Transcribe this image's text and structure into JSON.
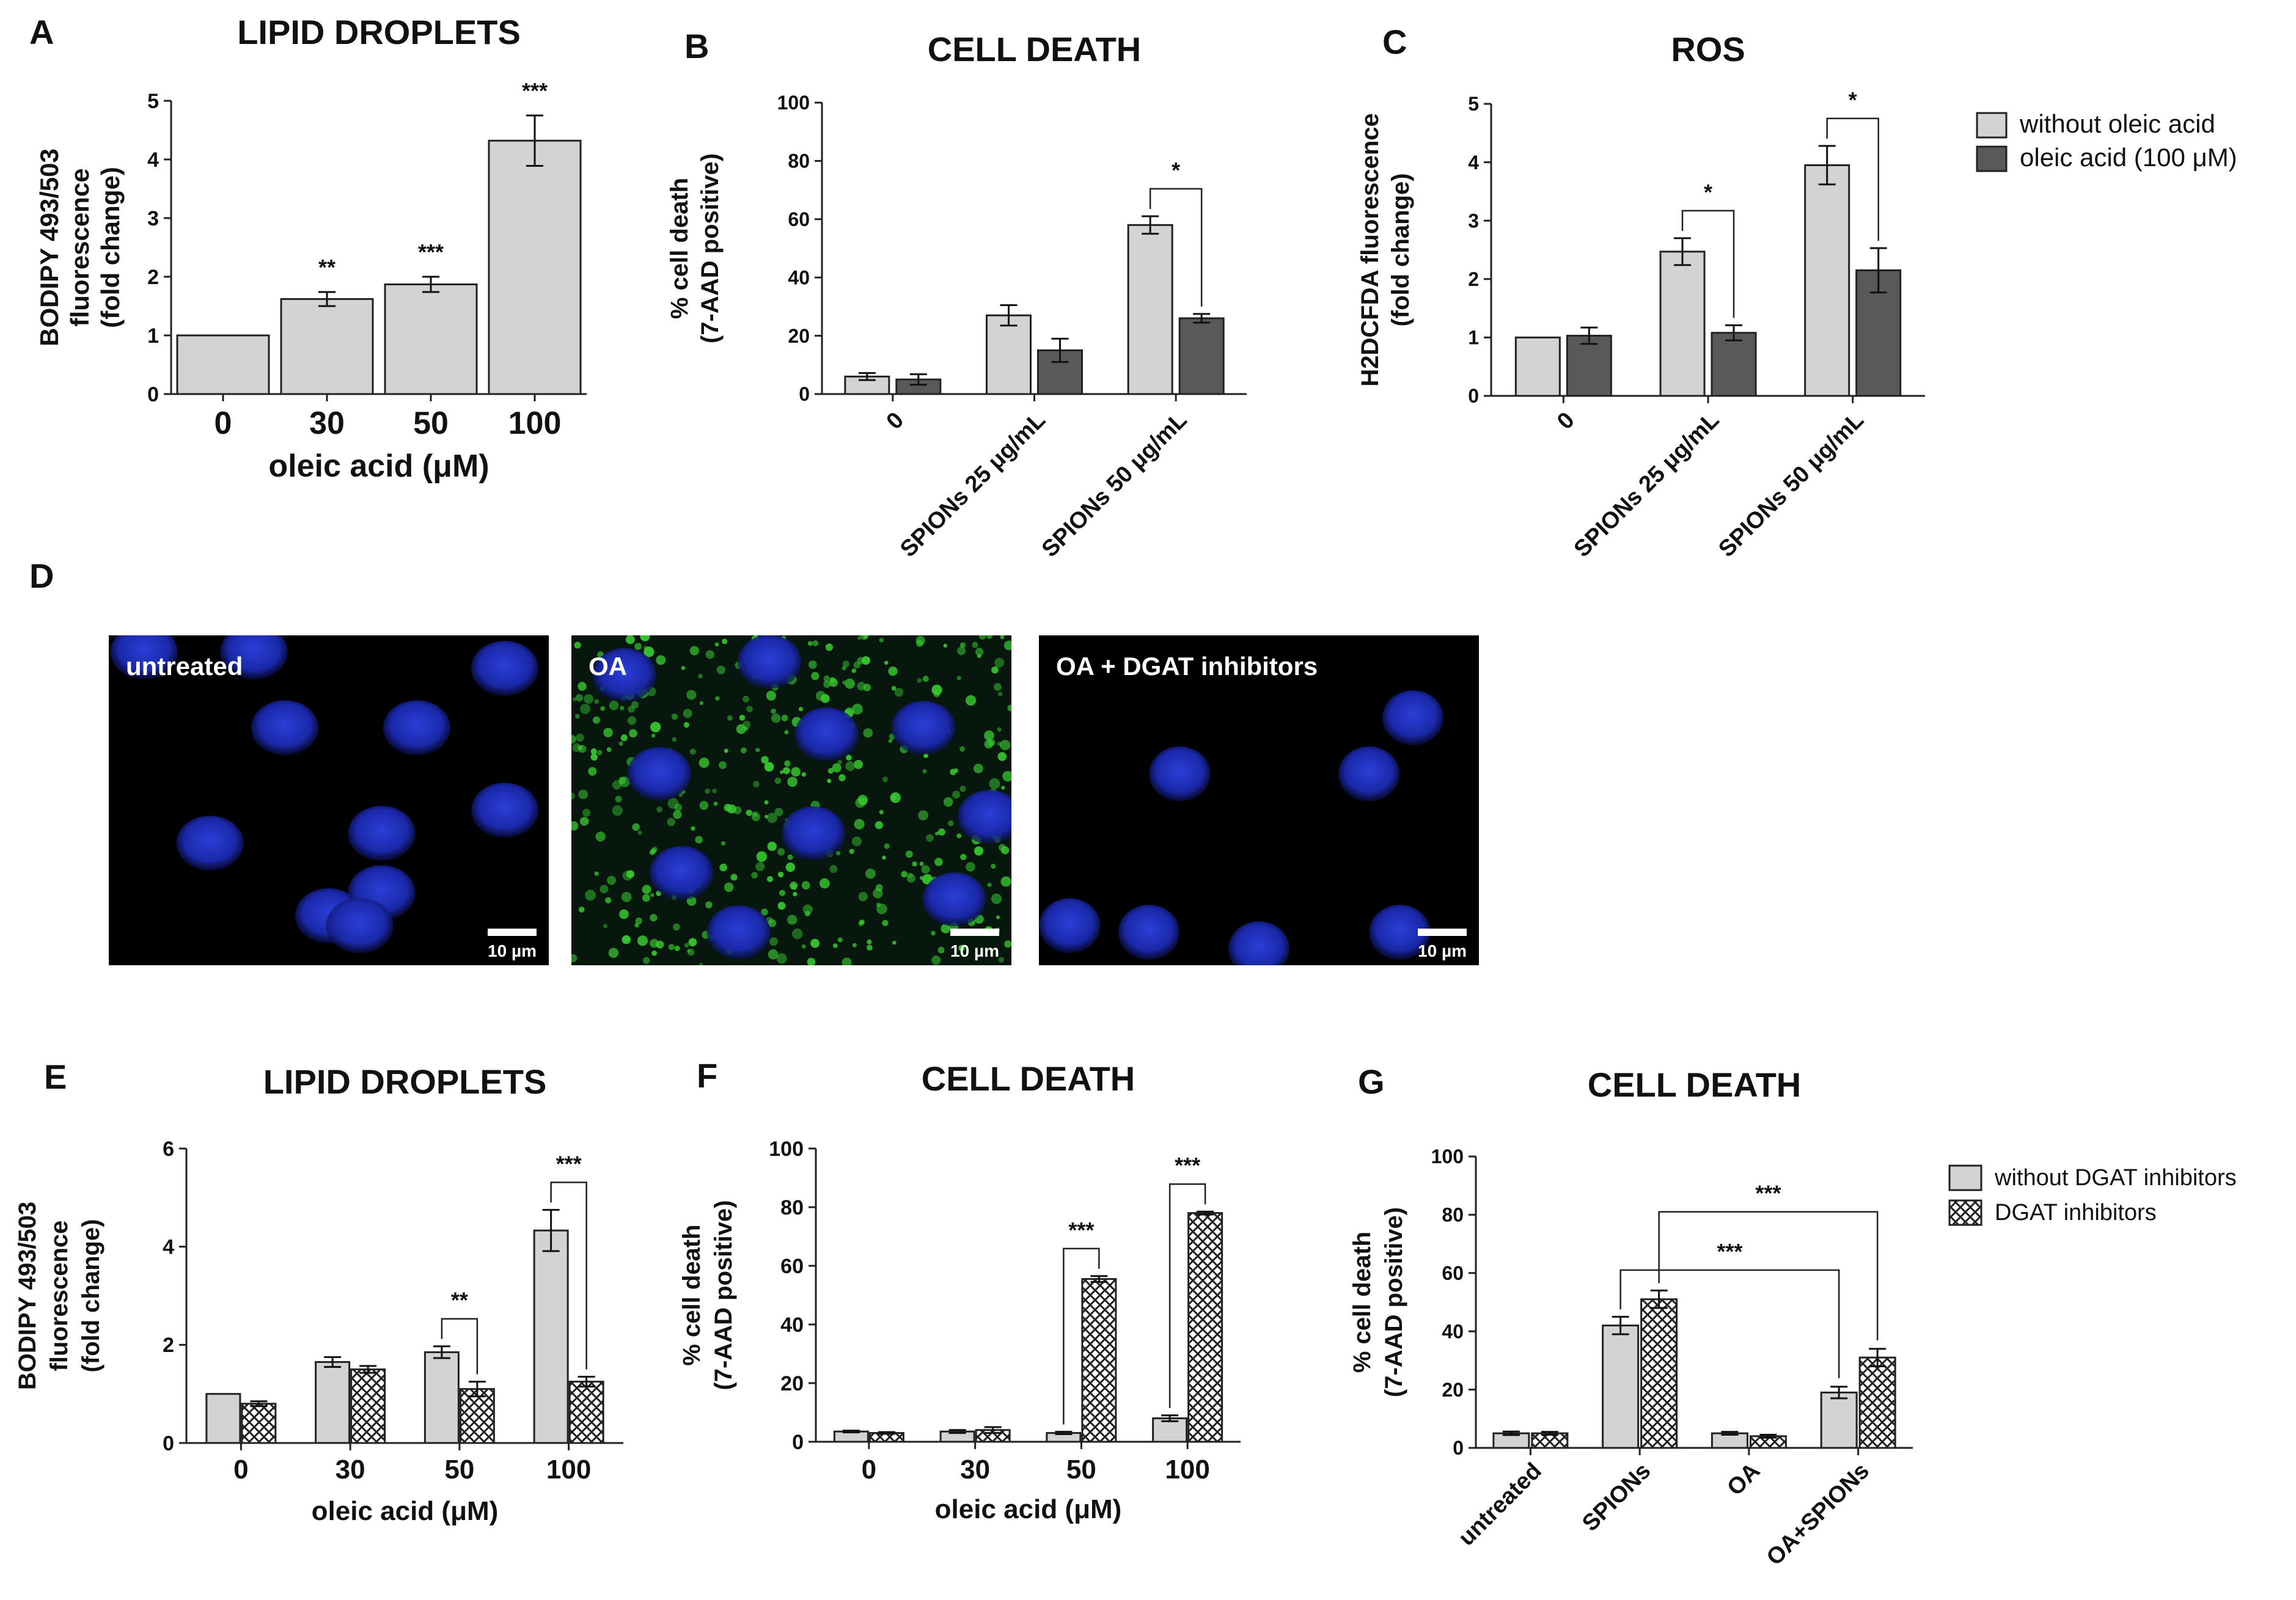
{
  "colors": {
    "light_bar": "#d3d3d3",
    "dark_bar": "#595959",
    "hatch_fill": "#ffffff",
    "nucleus": "#1f2fb8",
    "lipid": "#38c830",
    "image_bg": "#000000"
  },
  "legends": {
    "oleic": [
      {
        "label": "without oleic acid",
        "style": "light"
      },
      {
        "label": "oleic acid (100 μM)",
        "style": "dark"
      }
    ],
    "dgat": [
      {
        "label": "without DGAT inhibitors",
        "style": "light"
      },
      {
        "label": "DGAT inhibitors",
        "style": "hatch"
      }
    ]
  },
  "microscopy": {
    "panel_letter": "D",
    "scale_label": "10 µm",
    "images": [
      {
        "label": "untreated",
        "lipid": false
      },
      {
        "label": "OA",
        "lipid": true
      },
      {
        "label": "OA + DGAT inhibitors",
        "lipid": false
      }
    ]
  },
  "chart_data": [
    {
      "id": "A",
      "panel_letter": "A",
      "type": "bar",
      "title": "LIPID DROPLETS",
      "ylabel": [
        "BODIPY 493/503",
        "fluorescence",
        "(fold change)"
      ],
      "xlabel": "oleic acid (μM)",
      "ylim": [
        0,
        5
      ],
      "yticks": [
        0,
        1,
        2,
        3,
        4,
        5
      ],
      "categories": [
        "0",
        "30",
        "50",
        "100"
      ],
      "rotate_x": false,
      "series": [
        {
          "style": "light",
          "values": [
            1.0,
            1.62,
            1.87,
            4.32
          ],
          "errors": [
            0.0,
            0.12,
            0.13,
            0.43
          ]
        }
      ],
      "annotations": [
        {
          "type": "star",
          "cat": 1,
          "text": "**"
        },
        {
          "type": "star",
          "cat": 2,
          "text": "***"
        },
        {
          "type": "star",
          "cat": 3,
          "text": "***"
        }
      ],
      "legend": null
    },
    {
      "id": "B",
      "panel_letter": "B",
      "type": "bar",
      "title": "CELL DEATH",
      "ylabel": [
        "% cell death",
        "(7-AAD positive)"
      ],
      "xlabel": "",
      "ylim": [
        0,
        100
      ],
      "yticks": [
        0,
        20,
        40,
        60,
        80,
        100
      ],
      "categories": [
        "0",
        "SPIONs 25 μg/mL",
        "SPIONs 50 μg/mL"
      ],
      "rotate_x": true,
      "series": [
        {
          "style": "light",
          "values": [
            6,
            27,
            58
          ],
          "errors": [
            1.2,
            3.5,
            3
          ]
        },
        {
          "style": "dark",
          "values": [
            5,
            15,
            26
          ],
          "errors": [
            1.8,
            4,
            1.5
          ]
        }
      ],
      "annotations": [
        {
          "type": "bracket",
          "text": "*",
          "cat": 2
        }
      ],
      "legend": null
    },
    {
      "id": "C",
      "panel_letter": "C",
      "type": "bar",
      "title": "ROS",
      "ylabel": [
        "H2DCFDA fluorescence",
        "(fold change)"
      ],
      "xlabel": "",
      "ylim": [
        0,
        5
      ],
      "yticks": [
        0,
        1,
        2,
        3,
        4,
        5
      ],
      "categories": [
        "0",
        "SPIONs 25 μg/mL",
        "SPIONs 50 μg/mL"
      ],
      "rotate_x": true,
      "series": [
        {
          "style": "light",
          "values": [
            1.0,
            2.47,
            3.95
          ],
          "errors": [
            0,
            0.23,
            0.33
          ]
        },
        {
          "style": "dark",
          "values": [
            1.03,
            1.08,
            2.15
          ],
          "errors": [
            0.14,
            0.13,
            0.38
          ]
        }
      ],
      "annotations": [
        {
          "type": "bracket",
          "text": "*",
          "cat": 1
        },
        {
          "type": "bracket",
          "text": "*",
          "cat": 2
        }
      ],
      "legend": "oleic"
    },
    {
      "id": "E",
      "panel_letter": "E",
      "type": "bar",
      "title": "LIPID DROPLETS",
      "ylabel": [
        "BODIPY 493/503",
        "fluorescence",
        "(fold change)"
      ],
      "xlabel": "oleic acid (μM)",
      "ylim": [
        0,
        6
      ],
      "yticks": [
        0,
        2,
        4,
        6
      ],
      "categories": [
        "0",
        "30",
        "50",
        "100"
      ],
      "rotate_x": false,
      "series": [
        {
          "style": "light",
          "values": [
            1.0,
            1.65,
            1.85,
            4.33
          ],
          "errors": [
            0,
            0.1,
            0.12,
            0.42
          ]
        },
        {
          "style": "hatch",
          "values": [
            0.8,
            1.5,
            1.1,
            1.25
          ],
          "errors": [
            0.05,
            0.07,
            0.15,
            0.1
          ]
        }
      ],
      "annotations": [
        {
          "type": "bracket",
          "text": "**",
          "cat": 2
        },
        {
          "type": "bracket",
          "text": "***",
          "cat": 3
        }
      ],
      "legend": null
    },
    {
      "id": "F",
      "panel_letter": "F",
      "type": "bar",
      "title": "CELL DEATH",
      "ylabel": [
        "% cell death",
        "(7-AAD positive)"
      ],
      "xlabel": "oleic acid (μM)",
      "ylim": [
        0,
        100
      ],
      "yticks": [
        0,
        20,
        40,
        60,
        80,
        100
      ],
      "categories": [
        "0",
        "30",
        "50",
        "100"
      ],
      "rotate_x": false,
      "series": [
        {
          "style": "light",
          "values": [
            3.5,
            3.5,
            3,
            8
          ],
          "errors": [
            0.3,
            0.5,
            0.4,
            1
          ]
        },
        {
          "style": "hatch",
          "values": [
            3,
            4,
            55.5,
            78
          ],
          "errors": [
            0.3,
            1,
            1,
            0.5
          ]
        }
      ],
      "annotations": [
        {
          "type": "bracket",
          "text": "***",
          "cat": 2
        },
        {
          "type": "bracket",
          "text": "***",
          "cat": 3
        }
      ],
      "legend": null
    },
    {
      "id": "G",
      "panel_letter": "G",
      "type": "bar",
      "title": "CELL DEATH",
      "ylabel": [
        "% cell death",
        "(7-AAD positive)"
      ],
      "xlabel": "",
      "ylim": [
        0,
        100
      ],
      "yticks": [
        0,
        20,
        40,
        60,
        80,
        100
      ],
      "categories": [
        "untreated",
        "SPIONs",
        "OA",
        "OA+SPIONs"
      ],
      "rotate_x": true,
      "series": [
        {
          "style": "light",
          "values": [
            5,
            42,
            5,
            19
          ],
          "errors": [
            0.6,
            3,
            0.5,
            2
          ]
        },
        {
          "style": "hatch",
          "values": [
            5,
            51,
            4,
            31
          ],
          "errors": [
            0.5,
            3,
            0.5,
            3
          ]
        }
      ],
      "annotations": [
        {
          "type": "wide",
          "text": "***",
          "from": [
            1,
            0
          ],
          "to": [
            3,
            0
          ]
        },
        {
          "type": "wide",
          "text": "***",
          "from": [
            1,
            1
          ],
          "to": [
            3,
            1
          ]
        }
      ],
      "legend": "dgat"
    }
  ]
}
